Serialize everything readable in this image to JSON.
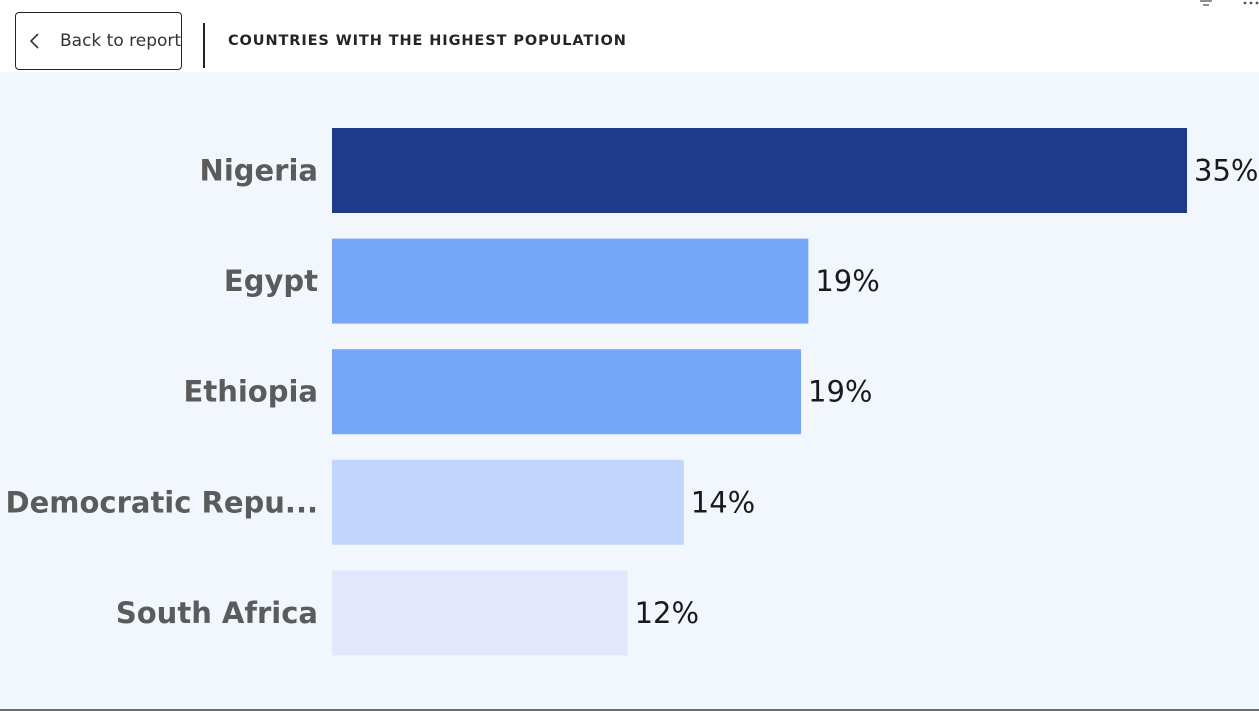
{
  "header": {
    "back_label": "Back to report",
    "title": "COUNTRIES WITH THE HIGHEST POPULATION"
  },
  "icons": {
    "back": "chevron-left-icon",
    "filter": "filter-icon",
    "more": "more-options-icon"
  },
  "chart_data": {
    "type": "bar",
    "orientation": "horizontal",
    "categories": [
      "Nigeria",
      "Egypt",
      "Ethiopia",
      "Democratic Repu...",
      "South Africa"
    ],
    "values": [
      35,
      19.5,
      19.2,
      14.4,
      12.1
    ],
    "value_labels": [
      "35%",
      "19%",
      "19%",
      "14%",
      "12%"
    ],
    "colors": [
      "#1f3a8a",
      "#76a6f7",
      "#76a6f7",
      "#c2d5fc",
      "#e2e7fd"
    ],
    "xlim": [
      0,
      35
    ],
    "grid": false,
    "legend": "none"
  }
}
